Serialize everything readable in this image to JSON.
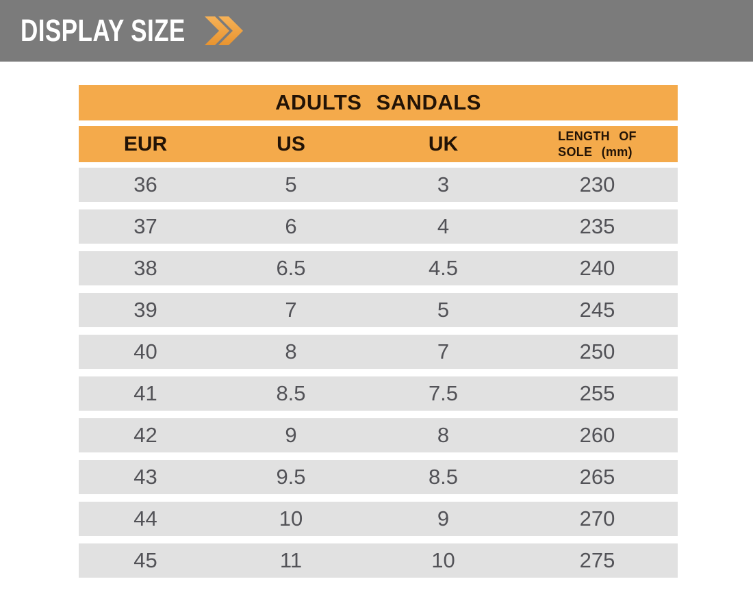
{
  "banner": {
    "title": "DISPLAY SIZE",
    "background": "#7b7b7b",
    "text_color": "#ffffff",
    "chevron_icon": "double-chevron-right",
    "chevron_color_top": "#f6b257",
    "chevron_color_bottom": "#e89430"
  },
  "table": {
    "title": "ADULTS SANDALS",
    "header_background": "#f4aa4b",
    "header_text_color": "#221306",
    "row_background": "#e1e1e1",
    "row_text_color": "#525257",
    "headers": {
      "eur": "EUR",
      "us": "US",
      "uk": "UK",
      "length_line1": "LENGTH OF",
      "length_line2": "SOLE (mm)"
    }
  },
  "chart_data": {
    "type": "table",
    "title": "ADULTS SANDALS",
    "columns": [
      "EUR",
      "US",
      "UK",
      "LENGTH OF SOLE (mm)"
    ],
    "rows": [
      [
        "36",
        "5",
        "3",
        "230"
      ],
      [
        "37",
        "6",
        "4",
        "235"
      ],
      [
        "38",
        "6.5",
        "4.5",
        "240"
      ],
      [
        "39",
        "7",
        "5",
        "245"
      ],
      [
        "40",
        "8",
        "7",
        "250"
      ],
      [
        "41",
        "8.5",
        "7.5",
        "255"
      ],
      [
        "42",
        "9",
        "8",
        "260"
      ],
      [
        "43",
        "9.5",
        "8.5",
        "265"
      ],
      [
        "44",
        "10",
        "9",
        "270"
      ],
      [
        "45",
        "11",
        "10",
        "275"
      ]
    ]
  }
}
